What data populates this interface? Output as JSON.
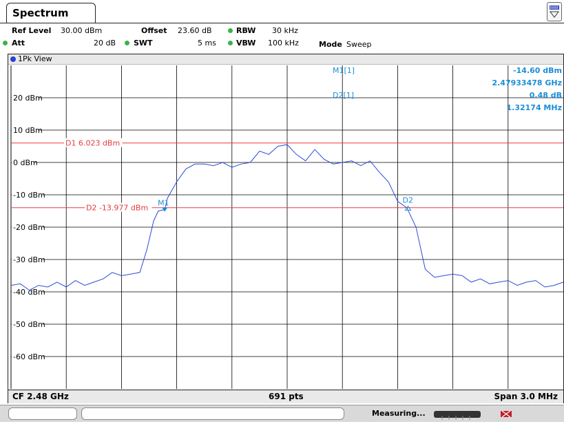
{
  "header": {
    "tab_label": "Spectrum"
  },
  "settings": {
    "ref_level_label": "Ref Level",
    "ref_level_value": "30.00 dBm",
    "offset_label": "Offset",
    "offset_value": "23.60 dB",
    "rbw_label": "RBW",
    "rbw_value": "30 kHz",
    "att_label": "Att",
    "att_value": "20 dB",
    "swt_label": "SWT",
    "swt_value": "5 ms",
    "vbw_label": "VBW",
    "vbw_value": "100 kHz",
    "mode_label": "Mode",
    "mode_value": "Sweep"
  },
  "view": {
    "label": "1Pk View"
  },
  "marker_table": {
    "m1_label": "M1[1]",
    "m1_level": "-14.60 dBm",
    "m1_freq": "2.47933478 GHz",
    "d2_label": "D2[1]",
    "d2_level": "0.48 dB",
    "d2_freq": "1.32174 MHz"
  },
  "footer": {
    "cf": "CF 2.48 GHz",
    "pts": "691 pts",
    "span": "Span 3.0 MHz"
  },
  "status": {
    "text": "Measuring..."
  },
  "colors": {
    "trace": "#2a4bd7",
    "display_line": "#e83b3b",
    "marker_text": "#1a8ed8",
    "grid": "#000000"
  },
  "chart_data": {
    "type": "line",
    "title": "",
    "xlabel": "",
    "ylabel": "",
    "xlim": [
      2.4785,
      2.4815
    ],
    "ylim": [
      -70,
      30
    ],
    "y_ticks": [
      {
        "value": 20,
        "label": "20 dBm"
      },
      {
        "value": 10,
        "label": "10 dBm"
      },
      {
        "value": 0,
        "label": "0 dBm"
      },
      {
        "value": -10,
        "label": "-10 dBm"
      },
      {
        "value": -20,
        "label": "-20 dBm"
      },
      {
        "value": -30,
        "label": "-30 dBm"
      },
      {
        "value": -40,
        "label": "-40 dBm"
      },
      {
        "value": -50,
        "label": "-50 dBm"
      },
      {
        "value": -60,
        "label": "-60 dBm"
      }
    ],
    "x_divisions": 10,
    "grid": true,
    "display_lines": [
      {
        "name": "D1",
        "label": "D1  6.023 dBm",
        "value": 6.023
      },
      {
        "name": "D2",
        "label": "D2  -13.977 dBm",
        "value": -13.977
      }
    ],
    "markers": [
      {
        "label": "M1",
        "x": 2.47933478,
        "y": -14.6
      },
      {
        "label": "D2",
        "x": 2.48065652,
        "y": -14.12
      }
    ],
    "series": [
      {
        "name": "",
        "x": [
          2.4785,
          2.47855,
          2.4786,
          2.47865,
          2.4787,
          2.47875,
          2.4788,
          2.47885,
          2.4789,
          2.47895,
          2.479,
          2.47905,
          2.4791,
          2.47915,
          2.4792,
          2.4792375,
          2.479275,
          2.4793,
          2.47933478,
          2.47935,
          2.4794,
          2.47945,
          2.4795,
          2.47955,
          2.4796,
          2.47965,
          2.4797,
          2.47975,
          2.4798,
          2.47985,
          2.4799,
          2.47995,
          2.48,
          2.48005,
          2.4801,
          2.48015,
          2.4802,
          2.48025,
          2.4803,
          2.48035,
          2.4804,
          2.48045,
          2.4805,
          2.48055,
          2.4806,
          2.48065,
          2.4807,
          2.48075,
          2.4808,
          2.48085,
          2.4809,
          2.48095,
          2.481,
          2.48105,
          2.4811,
          2.48115,
          2.4812,
          2.48125,
          2.4813,
          2.48135,
          2.4814,
          2.48145,
          2.4815
        ],
        "y": [
          -38,
          -37.5,
          -39.5,
          -38,
          -38.5,
          -37,
          -38.5,
          -36.5,
          -38,
          -37,
          -36,
          -34,
          -35,
          -34.5,
          -34,
          -27,
          -18,
          -15,
          -14.6,
          -11,
          -6,
          -2,
          -0.5,
          -0.5,
          -1,
          0,
          -1.5,
          -0.5,
          0,
          3.5,
          2.5,
          5,
          5.5,
          2.5,
          0.5,
          4,
          1,
          -0.5,
          0,
          0.5,
          -1,
          0.5,
          -3,
          -6,
          -12,
          -14,
          -20,
          -33,
          -35.5,
          -35,
          -34.5,
          -35,
          -37,
          -36,
          -37.5,
          -37,
          -36.5,
          -38,
          -37,
          -36.5,
          -38.5,
          -38,
          -37
        ]
      }
    ]
  }
}
